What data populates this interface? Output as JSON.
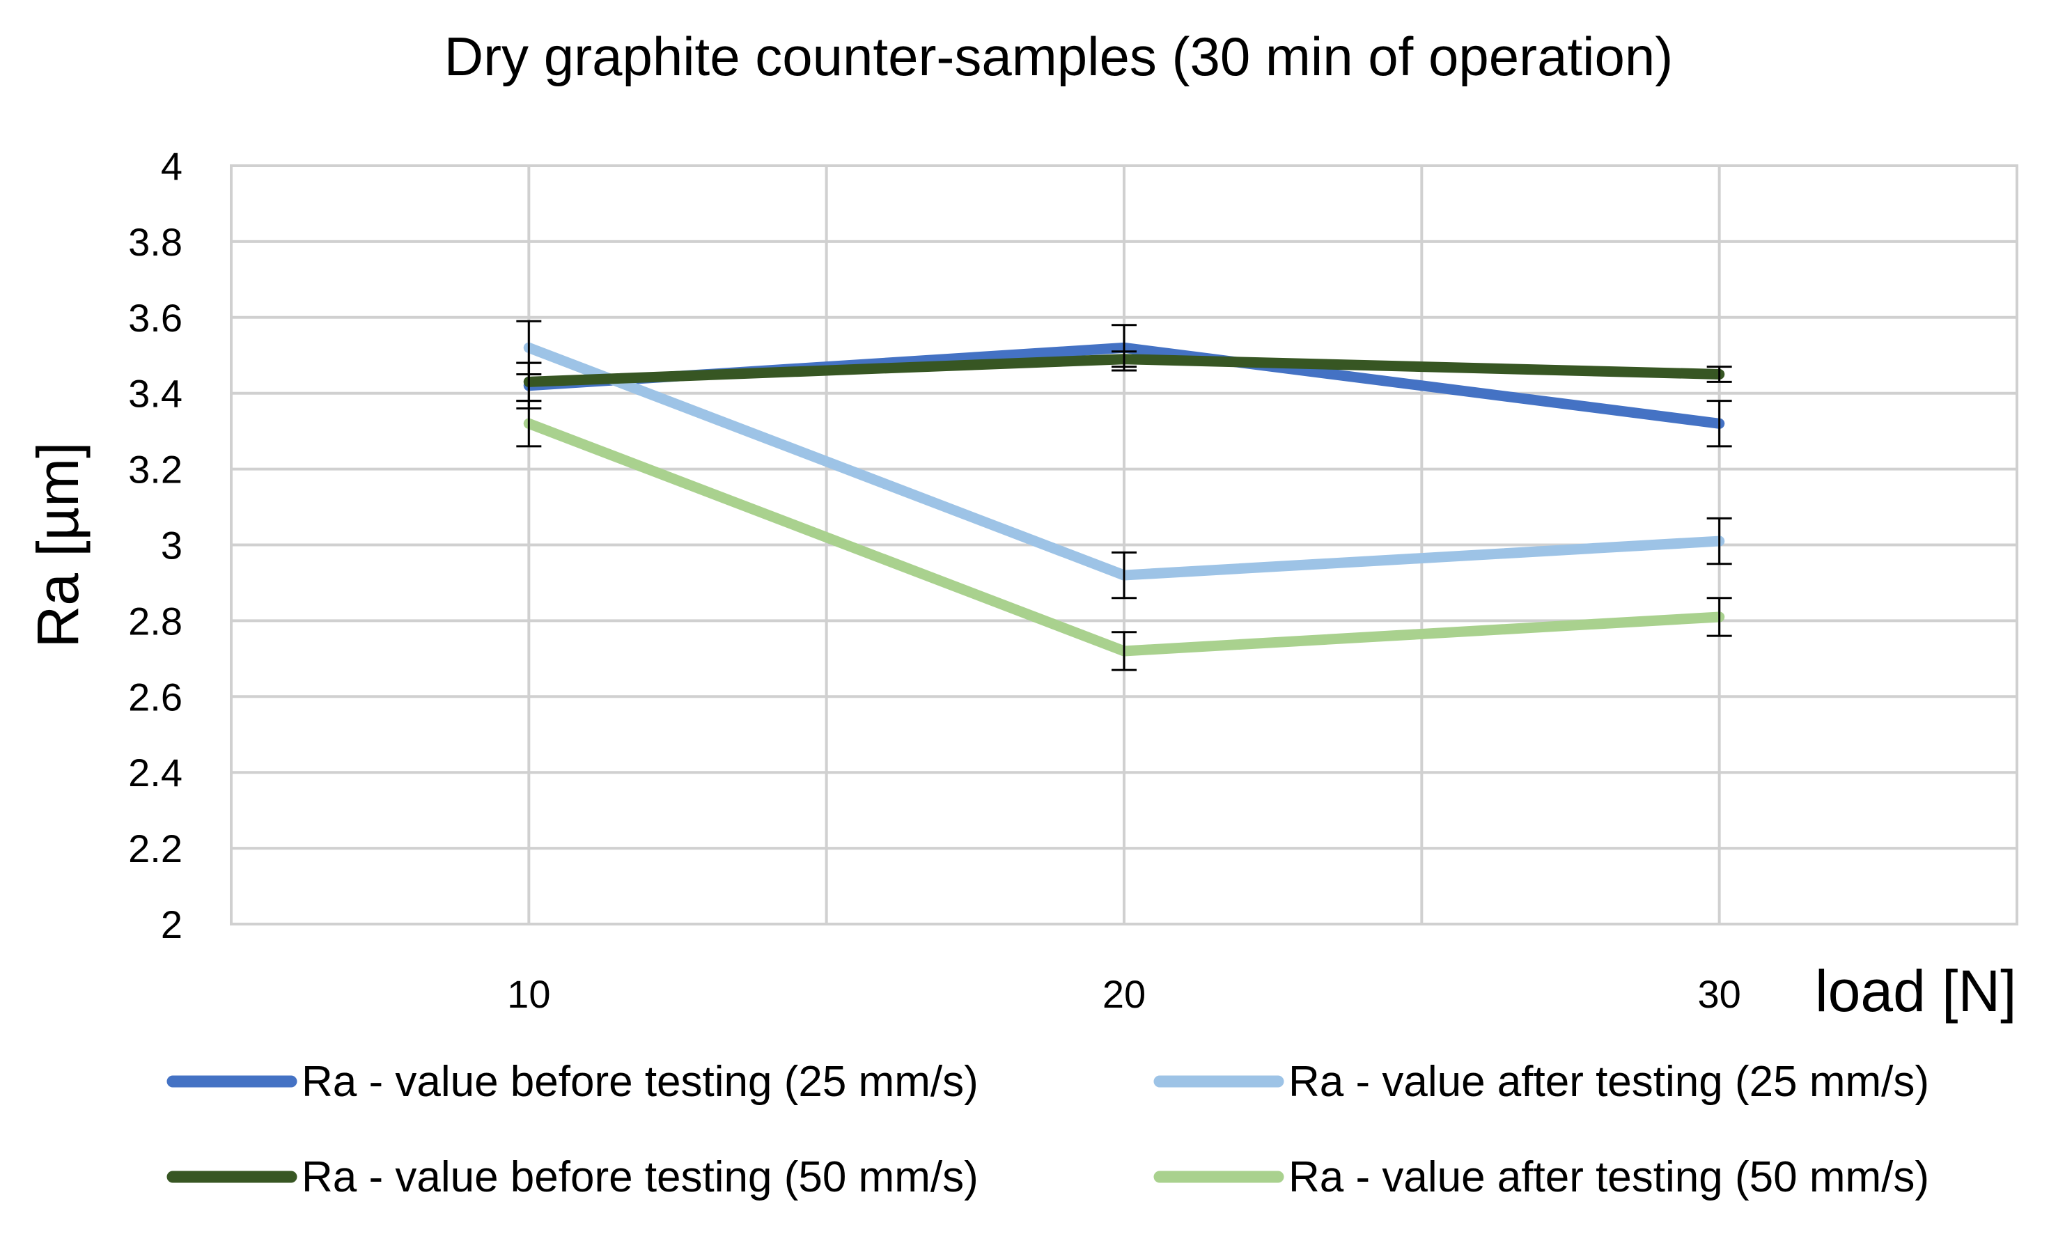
{
  "chart_data": {
    "type": "line",
    "title": "Dry graphite counter-samples (30 min of operation)",
    "xlabel": "load [N]",
    "ylabel": "Ra [µm]",
    "x_categories": [
      "10",
      "20",
      "30"
    ],
    "x_values": [
      10,
      20,
      30
    ],
    "xlim": [
      5,
      35
    ],
    "ylim": [
      2,
      4
    ],
    "y_ticks": [
      2,
      2.2,
      2.4,
      2.6,
      2.8,
      3,
      3.2,
      3.4,
      3.6,
      3.8,
      4
    ],
    "y_tick_labels": [
      "2",
      "2.2",
      "2.4",
      "2.6",
      "2.8",
      "3",
      "3.2",
      "3.4",
      "3.6",
      "3.8",
      "4"
    ],
    "grid": true,
    "legend_position": "bottom",
    "series": [
      {
        "name": "Ra - value before testing (25 mm/s)",
        "color": "#4472c4",
        "values": [
          3.42,
          3.52,
          3.32
        ],
        "errors": [
          0.06,
          0.06,
          0.06
        ]
      },
      {
        "name": "Ra - value after testing (25 mm/s)",
        "color": "#9dc3e6",
        "values": [
          3.52,
          2.92,
          3.01
        ],
        "errors": [
          0.07,
          0.06,
          0.06
        ]
      },
      {
        "name": "Ra - value before testing (50 mm/s)",
        "color": "#375623",
        "values": [
          3.43,
          3.49,
          3.45
        ],
        "errors": [
          0.05,
          0.02,
          0.02
        ]
      },
      {
        "name": "Ra - value after testing (50 mm/s)",
        "color": "#a9d18e",
        "values": [
          3.32,
          2.72,
          2.81
        ],
        "errors": [
          0.06,
          0.05,
          0.05
        ]
      }
    ]
  }
}
